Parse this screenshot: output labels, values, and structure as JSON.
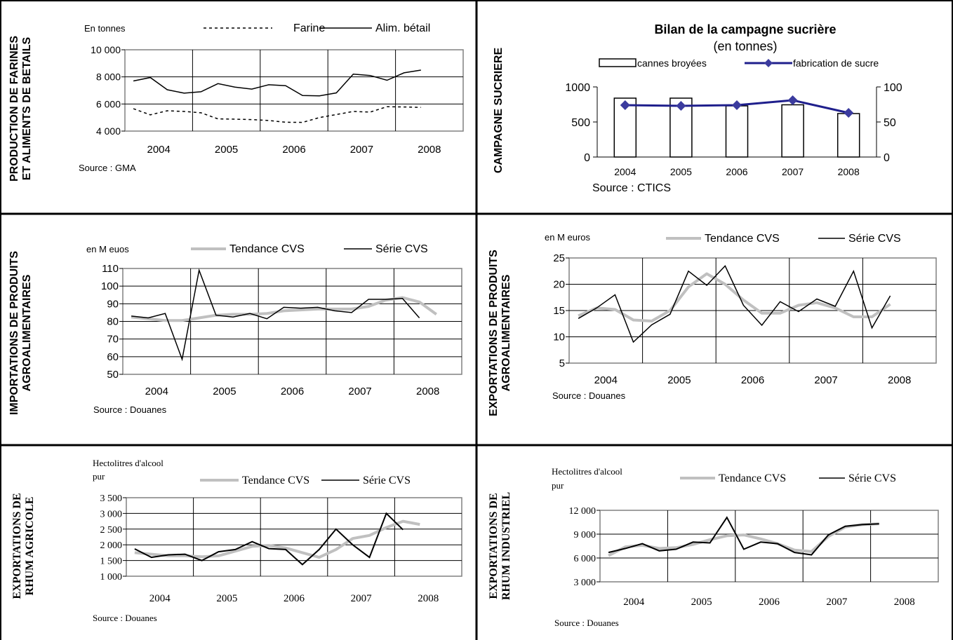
{
  "colors": {
    "trend": "#c0c0c0",
    "series": "#000000",
    "sugar_line": "#1f1f8c",
    "sugar_marker": "#3b3b9e",
    "grid": "#000000",
    "frame": "#808080"
  },
  "chart_data": [
    {
      "id": "farines",
      "type": "line",
      "side_title": [
        "PRODUCTION DE FARINES",
        "ET ALIMENTS DE BETAILS"
      ],
      "unit_label": "En tonnes",
      "source": "Source : GMA",
      "years": [
        "2004",
        "2005",
        "2006",
        "2007",
        "2008"
      ],
      "ylim": [
        4000,
        10000
      ],
      "yticks": [
        "10 000",
        "8 000",
        "6 000",
        "4 000"
      ],
      "ytick_values": [
        10000,
        8000,
        6000,
        4000
      ],
      "grid": true,
      "legend_position": "top",
      "series": [
        {
          "name": "Farine",
          "style": "dotted",
          "values": [
            5650,
            5200,
            5500,
            5450,
            5350,
            4900,
            4880,
            4850,
            4780,
            4650,
            4640,
            5000,
            5220,
            5450,
            5400,
            5800,
            5780,
            5750
          ]
        },
        {
          "name": "Alim. bétail",
          "style": "solid",
          "values": [
            7700,
            7950,
            7050,
            6800,
            6900,
            7500,
            7250,
            7100,
            7420,
            7350,
            6620,
            6600,
            6820,
            8200,
            8100,
            7750,
            8300,
            8500
          ]
        }
      ]
    },
    {
      "id": "sucre",
      "type": "bar",
      "side_title": [
        "CAMPAGNE SUCRIERE"
      ],
      "title": "Bilan de la campagne sucrière",
      "subtitle": "(en tonnes)",
      "source": "Source : CTICS",
      "categories": [
        "2004",
        "2005",
        "2006",
        "2007",
        "2008"
      ],
      "ylim": [
        0,
        1000
      ],
      "yticks": [
        "1000",
        "500",
        "0"
      ],
      "ytick_values": [
        1000,
        500,
        0
      ],
      "y2lim": [
        0,
        100
      ],
      "y2ticks": [
        "100",
        "50",
        "0"
      ],
      "y2tick_values": [
        100,
        50,
        0
      ],
      "legend_position": "top",
      "series": [
        {
          "name": "cannes broyées",
          "kind": "bar",
          "axis": "left",
          "values": [
            840,
            840,
            730,
            745,
            620
          ]
        },
        {
          "name": "fabrication de sucre",
          "kind": "line",
          "axis": "right",
          "values": [
            74,
            73,
            74,
            81,
            63
          ]
        }
      ]
    },
    {
      "id": "imports",
      "type": "line",
      "side_title": [
        "IMPORTATIONS DE PRODUITS",
        "AGROALIMENTAIRES"
      ],
      "unit_label": "en M euos",
      "source": "Source : Douanes",
      "years": [
        "2004",
        "2005",
        "2006",
        "2007",
        "2008"
      ],
      "ylim": [
        50,
        110
      ],
      "yticks": [
        "110",
        "100",
        "90",
        "80",
        "70",
        "60",
        "50"
      ],
      "ytick_values": [
        110,
        100,
        90,
        80,
        70,
        60,
        50
      ],
      "grid": true,
      "legend_position": "top",
      "series": [
        {
          "name": "Tendance CVS",
          "kind": "trend",
          "values": [
            82.5,
            81.5,
            80.5,
            80.5,
            82,
            83.5,
            84,
            84,
            84.5,
            86,
            86.5,
            87,
            87,
            87,
            88.5,
            92,
            93.5,
            91,
            84
          ]
        },
        {
          "name": "Série CVS",
          "kind": "series",
          "values": [
            83,
            82,
            84.5,
            58.5,
            109,
            83.5,
            82.5,
            84.5,
            81.5,
            88,
            87.5,
            88,
            86,
            85,
            92.5,
            92.5,
            93,
            82
          ]
        }
      ]
    },
    {
      "id": "exports",
      "type": "line",
      "side_title": [
        "EXPORTATIONS DE PRODUITS",
        "AGROALIMENTAIRES"
      ],
      "unit_label": "en M euros",
      "source": "Source : Douanes",
      "years": [
        "2004",
        "2005",
        "2006",
        "2007",
        "2008"
      ],
      "ylim": [
        5,
        25
      ],
      "yticks": [
        "25",
        "20",
        "15",
        "10",
        "5"
      ],
      "ytick_values": [
        25,
        20,
        15,
        10,
        5
      ],
      "grid": true,
      "legend_position": "top",
      "series": [
        {
          "name": "Tendance CVS",
          "kind": "trend",
          "values": [
            14,
            15.5,
            15.2,
            13.2,
            13,
            15,
            19.5,
            22,
            20,
            17,
            14.5,
            14.5,
            16,
            16.5,
            15.5,
            13.8,
            13.8,
            16.2
          ]
        },
        {
          "name": "Série CVS",
          "kind": "series",
          "values": [
            13.5,
            15.5,
            18,
            9,
            12.3,
            14.3,
            22.5,
            19.8,
            23.5,
            16,
            12.2,
            16.7,
            14.8,
            17.2,
            15.8,
            22.5,
            11.7,
            17.8
          ]
        }
      ]
    },
    {
      "id": "rhum_agricole",
      "type": "line",
      "side_title": [
        "EXPORTATIONS DE",
        "RHUM AGRICOLE"
      ],
      "unit_label": [
        "Hectolitres d'alcool",
        "pur"
      ],
      "source": "Source : Douanes",
      "years": [
        "2004",
        "2005",
        "2006",
        "2007",
        "2008"
      ],
      "ylim": [
        1000,
        3500
      ],
      "yticks": [
        "3 500",
        "3 000",
        "2 500",
        "2 000",
        "1 500",
        "1 000"
      ],
      "ytick_values": [
        3500,
        3000,
        2500,
        2000,
        1500,
        1000
      ],
      "grid": true,
      "legend_position": "top",
      "series": [
        {
          "name": "Tendance CVS",
          "kind": "trend",
          "values": [
            1750,
            1700,
            1650,
            1650,
            1620,
            1650,
            1800,
            1950,
            1980,
            1900,
            1750,
            1600,
            1850,
            2200,
            2300,
            2550,
            2750,
            2650
          ]
        },
        {
          "name": "Série CVS",
          "kind": "series",
          "values": [
            1870,
            1600,
            1680,
            1700,
            1500,
            1780,
            1850,
            2100,
            1880,
            1850,
            1370,
            1850,
            2500,
            2000,
            1600,
            3000,
            2480
          ]
        }
      ]
    },
    {
      "id": "rhum_industriel",
      "type": "line",
      "side_title": [
        "EXPORTATIONS DE",
        "RHUM INDUSTRIEL"
      ],
      "unit_label": [
        "Hectolitres d'alcool",
        "pur"
      ],
      "source": "Source : Douanes",
      "years": [
        "2004",
        "2005",
        "2006",
        "2007",
        "2008"
      ],
      "ylim": [
        3000,
        12000
      ],
      "yticks": [
        "12 000",
        "9 000",
        "6 000",
        "3 000"
      ],
      "ytick_values": [
        12000,
        9000,
        6000,
        3000
      ],
      "grid": true,
      "legend_position": "top",
      "series": [
        {
          "name": "Tendance CVS",
          "kind": "trend",
          "values": [
            6300,
            7400,
            7600,
            7200,
            7300,
            7700,
            8300,
            8800,
            8900,
            8400,
            7800,
            7000,
            6800,
            8700,
            9900,
            10200,
            10300
          ]
        },
        {
          "name": "Série CVS",
          "kind": "series",
          "values": [
            6700,
            7200,
            7800,
            6900,
            7100,
            8000,
            7900,
            11100,
            7100,
            8000,
            7800,
            6700,
            6400,
            8900,
            10000,
            10200,
            10300
          ]
        }
      ]
    }
  ]
}
